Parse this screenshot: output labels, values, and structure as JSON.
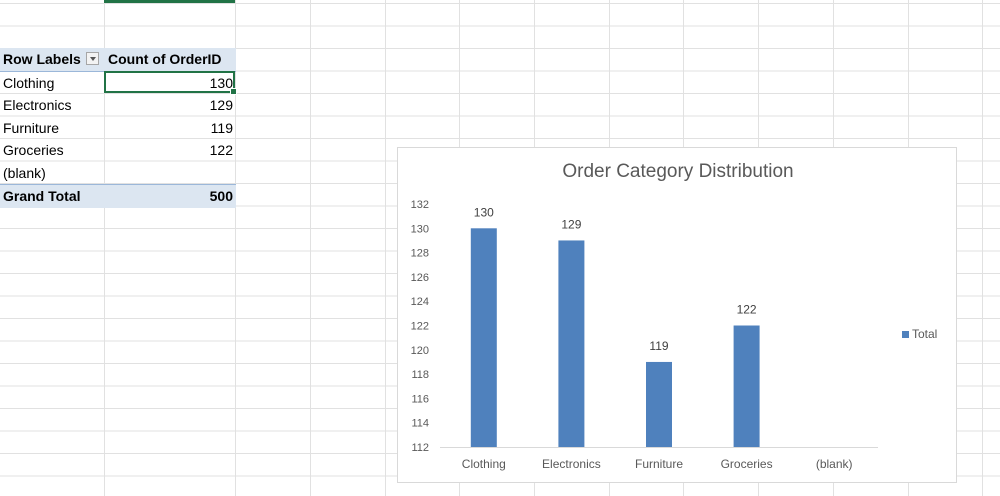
{
  "pivot": {
    "header": {
      "row_labels": "Row Labels",
      "value_header": "Count of OrderID"
    },
    "rows": [
      {
        "label": "Clothing",
        "count": "130"
      },
      {
        "label": "Electronics",
        "count": "129"
      },
      {
        "label": "Furniture",
        "count": "119"
      },
      {
        "label": "Groceries",
        "count": "122"
      },
      {
        "label": "(blank)",
        "count": ""
      }
    ],
    "grand_total": {
      "label": "Grand Total",
      "count": "500"
    }
  },
  "colors": {
    "bar": "#4f81bd",
    "header_fill": "#dce6f1",
    "selection": "#217346",
    "gridline": "#e1e1e1"
  },
  "chart_data": {
    "type": "bar",
    "title": "Order Category Distribution",
    "categories": [
      "Clothing",
      "Electronics",
      "Furniture",
      "Groceries",
      "(blank)"
    ],
    "series": [
      {
        "name": "Total",
        "values": [
          130,
          129,
          119,
          122,
          null
        ]
      }
    ],
    "data_labels": [
      "130",
      "129",
      "119",
      "122",
      ""
    ],
    "ylim": [
      112,
      132
    ],
    "y_ticks": [
      112,
      114,
      116,
      118,
      120,
      122,
      124,
      126,
      128,
      130,
      132
    ],
    "xlabel": "",
    "ylabel": "",
    "grid": false,
    "legend": "right"
  }
}
